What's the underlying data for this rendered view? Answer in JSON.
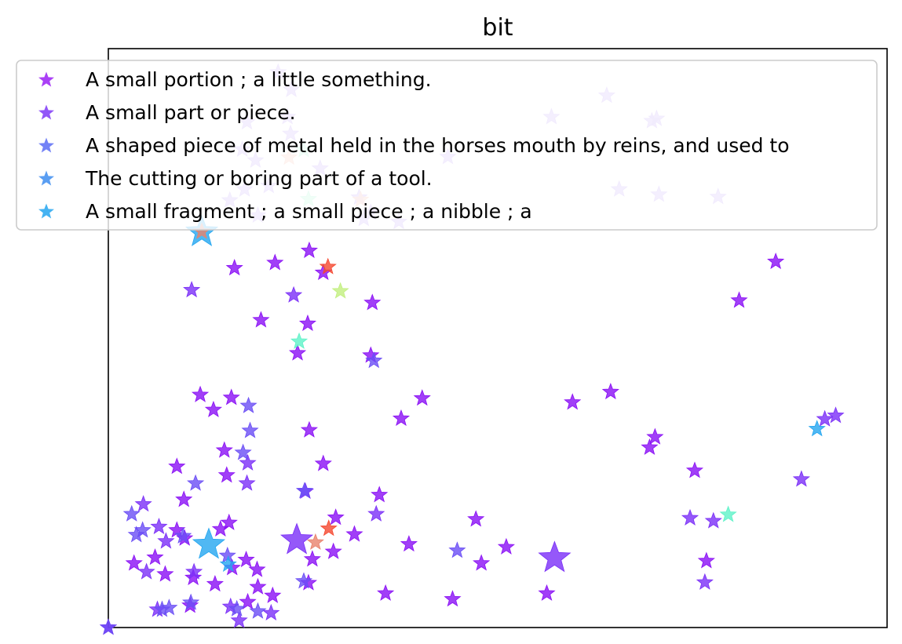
{
  "chart_data": {
    "type": "scatter",
    "title": "bit",
    "xlabel": "",
    "ylabel": "",
    "xlim": [
      0,
      100
    ],
    "ylim": [
      0,
      100
    ],
    "grid": false,
    "ticks": false,
    "legend": {
      "placement": "top-left",
      "entries": [
        {
          "label": "A small portion ; a little something.",
          "color": "#9b1ef5"
        },
        {
          "label": "A small part or piece.",
          "color": "#7f38f7"
        },
        {
          "label": "A shaped piece of metal held in the horses mouth by reins, and used to",
          "color": "#5a6cf5"
        },
        {
          "label": "The cutting or boring part of a tool.",
          "color": "#3d8df0"
        },
        {
          "label": "A small fragment ; a small piece ; a nibble ; a",
          "color": "#24a6f0"
        }
      ]
    },
    "series": [
      {
        "marker": "star",
        "color": "#8a0ff5",
        "points": [
          [
            16.2,
            62.1
          ],
          [
            21.4,
            63.0
          ],
          [
            27.6,
            61.3
          ],
          [
            25.6,
            52.5
          ],
          [
            19.6,
            53.1
          ],
          [
            33.9,
            56.1
          ],
          [
            33.7,
            47.0
          ],
          [
            24.3,
            47.4
          ],
          [
            11.8,
            40.2
          ],
          [
            15.8,
            39.7
          ],
          [
            13.5,
            37.6
          ],
          [
            25.8,
            34.1
          ],
          [
            37.6,
            36.1
          ],
          [
            40.3,
            39.6
          ],
          [
            14.9,
            30.6
          ],
          [
            27.6,
            28.3
          ],
          [
            47.2,
            18.7
          ],
          [
            28.9,
            13.1
          ],
          [
            38.6,
            14.4
          ],
          [
            17.7,
            11.7
          ],
          [
            9.7,
            22.1
          ],
          [
            8.8,
            27.8
          ],
          [
            15.5,
            18.1
          ],
          [
            34.8,
            22.9
          ],
          [
            29.2,
            19.0
          ],
          [
            31.6,
            16.1
          ],
          [
            26.2,
            11.8
          ],
          [
            19.1,
            10.0
          ],
          [
            10.9,
            8.6
          ],
          [
            9.8,
            15.4
          ],
          [
            35.6,
            5.9
          ],
          [
            25.7,
            7.7
          ],
          [
            19.2,
            7.0
          ],
          [
            21.1,
            5.5
          ],
          [
            17.9,
            4.4
          ],
          [
            47.9,
            11.1
          ],
          [
            51.1,
            13.9
          ],
          [
            56.3,
            5.9
          ],
          [
            44.2,
            4.9
          ],
          [
            70.2,
            32.9
          ],
          [
            59.6,
            38.9
          ],
          [
            64.5,
            40.7
          ],
          [
            75.3,
            27.1
          ],
          [
            69.5,
            31.1
          ],
          [
            76.8,
            11.5
          ],
          [
            85.7,
            63.2
          ],
          [
            81.0,
            56.5
          ],
          [
            0.0,
            0.0
          ],
          [
            14.4,
            17.0
          ],
          [
            15.2,
            26.3
          ],
          [
            25.8,
            65.1
          ],
          [
            3.3,
            11.1
          ],
          [
            6.0,
            12.1
          ],
          [
            7.3,
            9.2
          ],
          [
            15.9,
            10.3
          ],
          [
            13.7,
            7.5
          ],
          [
            10.5,
            3.8
          ],
          [
            8.8,
            16.8
          ]
        ]
      },
      {
        "marker": "star",
        "color": "#7a2ef7",
        "points": [
          [
            17.9,
            28.4
          ],
          [
            17.8,
            24.9
          ],
          [
            25.3,
            23.5
          ],
          [
            4.5,
            21.3
          ],
          [
            6.5,
            17.4
          ],
          [
            7.4,
            14.9
          ],
          [
            4.9,
            9.6
          ],
          [
            11.0,
            9.6
          ],
          [
            15.7,
            3.6
          ],
          [
            23.8,
            57.4
          ],
          [
            10.7,
            58.3
          ],
          [
            34.4,
            19.6
          ],
          [
            76.6,
            7.8
          ],
          [
            93.4,
            36.6
          ],
          [
            92.0,
            36.0
          ],
          [
            89.0,
            25.6
          ],
          [
            77.7,
            18.4
          ],
          [
            74.7,
            18.9
          ],
          [
            6.3,
            3.1
          ],
          [
            16.8,
            1.2
          ],
          [
            20.9,
            2.5
          ]
        ]
      },
      {
        "marker": "star",
        "color": "#6a4df5",
        "points": [
          [
            17.3,
            30.2
          ],
          [
            25.2,
            23.6
          ],
          [
            44.8,
            13.3
          ],
          [
            3.0,
            19.6
          ],
          [
            4.4,
            16.8
          ],
          [
            11.2,
            24.9
          ],
          [
            3.6,
            16.0
          ],
          [
            9.6,
            15.8
          ],
          [
            10.6,
            4.3
          ],
          [
            7.8,
            3.4
          ],
          [
            6.9,
            3.1
          ],
          [
            34.1,
            46.1
          ],
          [
            16.5,
            3.2
          ],
          [
            18.0,
            38.3
          ],
          [
            19.2,
            2.8
          ],
          [
            25.1,
            8.0
          ],
          [
            0.0,
            0.0
          ],
          [
            15.3,
            12.4
          ],
          [
            18.2,
            34.0
          ]
        ]
      },
      {
        "marker": "star",
        "color": "#24a6f0",
        "points": [
          [
            91.0,
            34.3
          ],
          [
            15.4,
            10.9
          ]
        ]
      },
      {
        "marker": "star-large",
        "color": "#7a2ef7",
        "points": [
          [
            24.2,
            15.1
          ],
          [
            57.3,
            12.0
          ]
        ]
      },
      {
        "marker": "star-large",
        "color": "#24a6f0",
        "points": [
          [
            12.9,
            14.3
          ],
          [
            12.0,
            68.3
          ]
        ]
      },
      {
        "marker": "star",
        "color": "#5ef2c8",
        "points": [
          [
            24.5,
            49.4
          ],
          [
            79.6,
            19.5
          ]
        ]
      },
      {
        "marker": "star",
        "color": "#c2ef7e",
        "points": [
          [
            29.8,
            58.1
          ]
        ]
      },
      {
        "marker": "star",
        "color": "#f5472e",
        "points": [
          [
            28.2,
            62.3
          ],
          [
            28.3,
            17.1
          ]
        ]
      },
      {
        "marker": "star",
        "color": "#e8826c",
        "points": [
          [
            26.6,
            14.7
          ],
          [
            12.0,
            68.4
          ]
        ]
      },
      {
        "marker": "star",
        "color": "#b79bf5",
        "points": [
          [
            64.0,
            91.9
          ],
          [
            56.9,
            88.2
          ],
          [
            69.8,
            87.5
          ],
          [
            70.4,
            87.9
          ],
          [
            65.6,
            75.7
          ],
          [
            70.7,
            74.8
          ],
          [
            78.3,
            74.4
          ],
          [
            21.8,
            95.9
          ],
          [
            23.5,
            92.9
          ],
          [
            23.0,
            88.2
          ],
          [
            18.9,
            80.7
          ],
          [
            17.2,
            82.6
          ],
          [
            17.5,
            75.7
          ],
          [
            20.6,
            76.3
          ],
          [
            27.2,
            79.3
          ],
          [
            32.2,
            74.3
          ],
          [
            33.7,
            71.7
          ],
          [
            19.2,
            71.2
          ],
          [
            15.6,
            73.8
          ],
          [
            37.3,
            70.1
          ],
          [
            23.4,
            85.3
          ],
          [
            17.8,
            87.3
          ],
          [
            43.6,
            81.3
          ],
          [
            32.8,
            70.6
          ]
        ]
      },
      {
        "marker": "star",
        "color": "#f5b8a8",
        "points": [
          [
            23.2,
            81.2
          ],
          [
            32.4,
            73.9
          ]
        ]
      },
      {
        "marker": "star",
        "color": "#9ff5cc",
        "points": [
          [
            25.7,
            74.0
          ],
          [
            25.1,
            82.5
          ]
        ]
      }
    ]
  }
}
